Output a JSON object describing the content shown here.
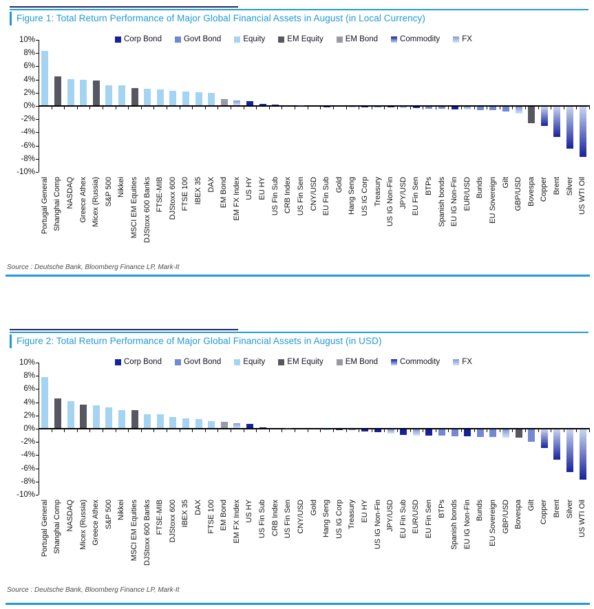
{
  "colors": {
    "corp-bond": "#16229b",
    "govt-bond": "#7288d2",
    "equity": "#a5d4f2",
    "em-equity": "#575761",
    "em-bond": "#999aa3",
    "commodity-dark": "#16229b",
    "commodity-light": "#c9d4f0",
    "fx-dark": "#7f99d8",
    "fx-light": "#d5e1f4",
    "accent-blue": "#1f9ad6",
    "rule-dark-navy": "#1e2566",
    "axis-black": "#000000"
  },
  "chart_data": [
    {
      "type": "bar",
      "title": "Figure 1: Total Return Performance of Major Global Financial Assets in August (in Local Currency)",
      "source": "Source : Deutsche Bank, Bloomberg Finance LP, Mark-It",
      "ylim": [
        -10,
        10
      ],
      "ytick_step": 2,
      "ytick_labels": [
        "10%",
        "8%",
        "6%",
        "4%",
        "2%",
        "0%",
        "-2%",
        "-4%",
        "-6%",
        "-8%",
        "-10%"
      ],
      "grid": false,
      "legend_position": "top",
      "legend": [
        {
          "label": "Corp Bond",
          "category": "corp-bond"
        },
        {
          "label": "Govt Bond",
          "category": "govt-bond"
        },
        {
          "label": "Equity",
          "category": "equity"
        },
        {
          "label": "EM Equity",
          "category": "em-equity"
        },
        {
          "label": "EM Bond",
          "category": "em-bond"
        },
        {
          "label": "Commodity",
          "category": "commodity"
        },
        {
          "label": "FX",
          "category": "fx"
        }
      ],
      "bars": [
        {
          "label": "Portugal General",
          "value": 8.2,
          "category": "equity"
        },
        {
          "label": "Shanghai Comp",
          "value": 4.4,
          "category": "em-equity"
        },
        {
          "label": "NASDAQ",
          "value": 4.0,
          "category": "equity"
        },
        {
          "label": "Greece Athex",
          "value": 3.9,
          "category": "equity"
        },
        {
          "label": "Micex (Russia)",
          "value": 3.8,
          "category": "em-equity"
        },
        {
          "label": "S&P 500",
          "value": 3.0,
          "category": "equity"
        },
        {
          "label": "Nikkei",
          "value": 3.0,
          "category": "equity"
        },
        {
          "label": "MSCI EM Equities",
          "value": 2.6,
          "category": "em-equity"
        },
        {
          "label": "DJStoxx 600 Banks",
          "value": 2.5,
          "category": "equity"
        },
        {
          "label": "FTSE-MIB",
          "value": 2.4,
          "category": "equity"
        },
        {
          "label": "DJStoxx 600",
          "value": 2.2,
          "category": "equity"
        },
        {
          "label": "FTSE 100",
          "value": 2.1,
          "category": "equity"
        },
        {
          "label": "IBEX 35",
          "value": 2.0,
          "category": "equity"
        },
        {
          "label": "DAX",
          "value": 1.9,
          "category": "equity"
        },
        {
          "label": "EM Bond",
          "value": 0.9,
          "category": "em-bond"
        },
        {
          "label": "EM FX Index",
          "value": 0.7,
          "category": "fx"
        },
        {
          "label": "US HY",
          "value": 0.6,
          "category": "corp-bond"
        },
        {
          "label": "EU HY",
          "value": 0.2,
          "category": "corp-bond"
        },
        {
          "label": "US Fin Sub",
          "value": 0.1,
          "category": "corp-bond"
        },
        {
          "label": "CRB Index",
          "value": 0.05,
          "category": "commodity"
        },
        {
          "label": "US Fin Sen",
          "value": 0.05,
          "category": "corp-bond"
        },
        {
          "label": "CNY/USD",
          "value": 0.05,
          "category": "fx"
        },
        {
          "label": "EU Fin Sub",
          "value": -0.05,
          "category": "corp-bond"
        },
        {
          "label": "Gold",
          "value": -0.05,
          "category": "commodity"
        },
        {
          "label": "Hang Seng",
          "value": -0.1,
          "category": "equity"
        },
        {
          "label": "US IG Corp",
          "value": -0.1,
          "category": "corp-bond"
        },
        {
          "label": "Treasury",
          "value": -0.15,
          "category": "govt-bond"
        },
        {
          "label": "US IG Non-Fin",
          "value": -0.15,
          "category": "corp-bond"
        },
        {
          "label": "JPY/USD",
          "value": -0.2,
          "category": "fx"
        },
        {
          "label": "EU Fin Sen",
          "value": -0.25,
          "category": "corp-bond"
        },
        {
          "label": "BTPs",
          "value": -0.3,
          "category": "govt-bond"
        },
        {
          "label": "Spanish bonds",
          "value": -0.35,
          "category": "govt-bond"
        },
        {
          "label": "EU IG Non-Fin",
          "value": -0.4,
          "category": "corp-bond"
        },
        {
          "label": "EUR/USD",
          "value": -0.45,
          "category": "fx"
        },
        {
          "label": "Bunds",
          "value": -0.5,
          "category": "govt-bond"
        },
        {
          "label": "EU Sovereign",
          "value": -0.55,
          "category": "govt-bond"
        },
        {
          "label": "Gilt",
          "value": -0.75,
          "category": "govt-bond"
        },
        {
          "label": "GBP/USD",
          "value": -1.0,
          "category": "fx"
        },
        {
          "label": "Bovespa",
          "value": -2.5,
          "category": "em-equity"
        },
        {
          "label": "Copper",
          "value": -2.9,
          "category": "commodity"
        },
        {
          "label": "Brent",
          "value": -4.6,
          "category": "commodity"
        },
        {
          "label": "Silver",
          "value": -6.4,
          "category": "commodity"
        },
        {
          "label": "US WTI Oil",
          "value": -7.6,
          "category": "commodity"
        }
      ]
    },
    {
      "type": "bar",
      "title": "Figure 2: Total Return Performance of Major Global Financial Assets in August (in USD)",
      "source": "Source : Deutsche Bank, Bloomberg Finance LP, Mark-It",
      "ylim": [
        -10,
        10
      ],
      "ytick_step": 2,
      "ytick_labels": [
        "10%",
        "8%",
        "6%",
        "4%",
        "2%",
        "0%",
        "-2%",
        "-4%",
        "-6%",
        "-8%",
        "-10%"
      ],
      "grid": false,
      "legend_position": "top",
      "legend": [
        {
          "label": "Corp Bond",
          "category": "corp-bond"
        },
        {
          "label": "Govt Bond",
          "category": "govt-bond"
        },
        {
          "label": "Equity",
          "category": "equity"
        },
        {
          "label": "EM Equity",
          "category": "em-equity"
        },
        {
          "label": "EM Bond",
          "category": "em-bond"
        },
        {
          "label": "Commodity",
          "category": "commodity"
        },
        {
          "label": "FX",
          "category": "fx"
        }
      ],
      "bars": [
        {
          "label": "Portugal General",
          "value": 7.7,
          "category": "equity"
        },
        {
          "label": "Shanghai Comp",
          "value": 4.5,
          "category": "em-equity"
        },
        {
          "label": "NASDAQ",
          "value": 4.1,
          "category": "equity"
        },
        {
          "label": "Micex (Russia)",
          "value": 3.5,
          "category": "em-equity"
        },
        {
          "label": "Greece Athex",
          "value": 3.4,
          "category": "equity"
        },
        {
          "label": "S&P 500",
          "value": 3.1,
          "category": "equity"
        },
        {
          "label": "Nikkei",
          "value": 2.7,
          "category": "equity"
        },
        {
          "label": "MSCI EM Equities",
          "value": 2.7,
          "category": "em-equity"
        },
        {
          "label": "DJStoxx 600 Banks",
          "value": 2.1,
          "category": "equity"
        },
        {
          "label": "FTSE-MIB",
          "value": 2.1,
          "category": "equity"
        },
        {
          "label": "DJStoxx 600",
          "value": 1.7,
          "category": "equity"
        },
        {
          "label": "IBEX 35",
          "value": 1.5,
          "category": "equity"
        },
        {
          "label": "DAX",
          "value": 1.4,
          "category": "equity"
        },
        {
          "label": "FTSE 100",
          "value": 1.0,
          "category": "equity"
        },
        {
          "label": "EM Bond",
          "value": 0.95,
          "category": "em-bond"
        },
        {
          "label": "EM FX Index",
          "value": 0.75,
          "category": "fx"
        },
        {
          "label": "US HY",
          "value": 0.65,
          "category": "corp-bond"
        },
        {
          "label": "US Fin Sub",
          "value": 0.1,
          "category": "corp-bond"
        },
        {
          "label": "CRB Index",
          "value": 0.05,
          "category": "commodity"
        },
        {
          "label": "US Fin Sen",
          "value": 0.05,
          "category": "corp-bond"
        },
        {
          "label": "CNY/USD",
          "value": 0.05,
          "category": "fx"
        },
        {
          "label": "Gold",
          "value": -0.05,
          "category": "commodity"
        },
        {
          "label": "Hang Seng",
          "value": -0.1,
          "category": "equity"
        },
        {
          "label": "US IG Corp",
          "value": -0.1,
          "category": "corp-bond"
        },
        {
          "label": "Treasury",
          "value": -0.15,
          "category": "govt-bond"
        },
        {
          "label": "EU HY",
          "value": -0.35,
          "category": "corp-bond"
        },
        {
          "label": "US IG Non-Fin",
          "value": -0.4,
          "category": "corp-bond"
        },
        {
          "label": "JPY/USD",
          "value": -0.6,
          "category": "fx"
        },
        {
          "label": "EU Fin Sub",
          "value": -0.85,
          "category": "corp-bond"
        },
        {
          "label": "EUR/USD",
          "value": -0.9,
          "category": "fx"
        },
        {
          "label": "EU Fin Sen",
          "value": -0.95,
          "category": "corp-bond"
        },
        {
          "label": "BTPs",
          "value": -0.95,
          "category": "govt-bond"
        },
        {
          "label": "Spanish bonds",
          "value": -1.0,
          "category": "govt-bond"
        },
        {
          "label": "EU IG Non-Fin",
          "value": -1.05,
          "category": "corp-bond"
        },
        {
          "label": "Bunds",
          "value": -1.1,
          "category": "govt-bond"
        },
        {
          "label": "EU Sovereign",
          "value": -1.15,
          "category": "govt-bond"
        },
        {
          "label": "GBP/USD",
          "value": -1.2,
          "category": "fx"
        },
        {
          "label": "Bovespa",
          "value": -1.3,
          "category": "em-equity"
        },
        {
          "label": "Gilt",
          "value": -1.9,
          "category": "govt-bond"
        },
        {
          "label": "Copper",
          "value": -2.8,
          "category": "commodity"
        },
        {
          "label": "Brent",
          "value": -4.6,
          "category": "commodity"
        },
        {
          "label": "Silver",
          "value": -6.5,
          "category": "commodity"
        },
        {
          "label": "US WTI Oil",
          "value": -7.6,
          "category": "commodity"
        }
      ]
    }
  ]
}
